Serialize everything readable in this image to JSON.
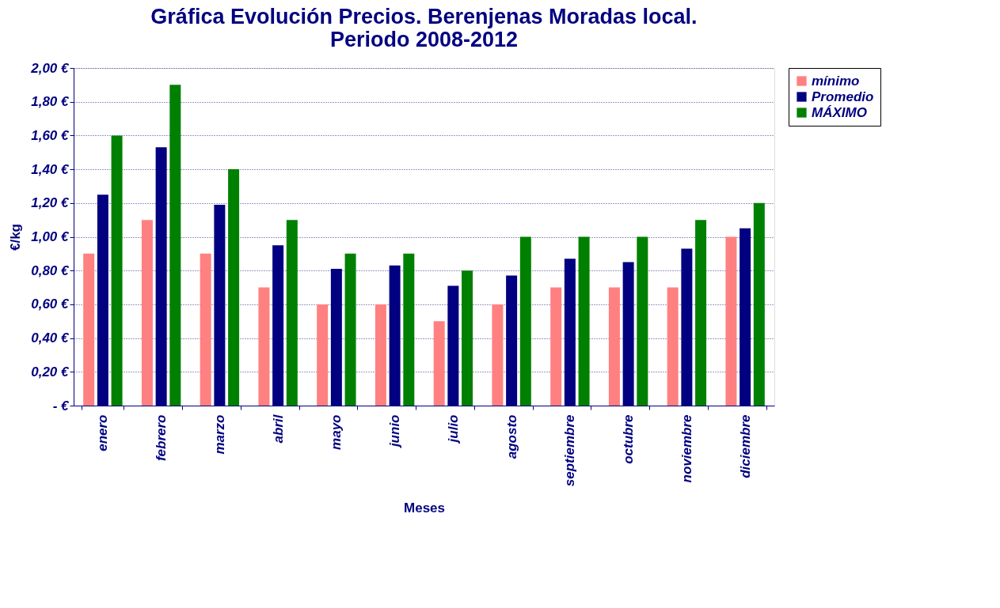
{
  "chart_data": {
    "type": "bar",
    "title": "Gráfica Evolución Precios. Berenjenas Moradas local.\nPeriodo 2008-2012",
    "xlabel": "Meses",
    "ylabel": "€/kg",
    "categories": [
      "enero",
      "febrero",
      "marzo",
      "abril",
      "mayo",
      "junio",
      "julio",
      "agosto",
      "septiembre",
      "octubre",
      "noviembre",
      "diciembre"
    ],
    "series": [
      {
        "name": "mínimo",
        "color": "#ff8080",
        "values": [
          0.9,
          1.1,
          0.9,
          0.7,
          0.6,
          0.6,
          0.5,
          0.6,
          0.7,
          0.7,
          0.7,
          1.0
        ]
      },
      {
        "name": "Promedio",
        "color": "#000080",
        "values": [
          1.25,
          1.53,
          1.19,
          0.95,
          0.81,
          0.83,
          0.71,
          0.77,
          0.87,
          0.85,
          0.93,
          1.05
        ]
      },
      {
        "name": "MÁXIMO",
        "color": "#008000",
        "values": [
          1.6,
          1.9,
          1.4,
          1.1,
          0.9,
          0.9,
          0.8,
          1.0,
          1.0,
          1.0,
          1.1,
          1.2
        ]
      }
    ],
    "ylim": [
      0,
      2
    ],
    "yticks": [
      {
        "value": 0,
        "label": "-    €"
      },
      {
        "value": 0.2,
        "label": "0,20 €"
      },
      {
        "value": 0.4,
        "label": "0,40 €"
      },
      {
        "value": 0.6,
        "label": "0,60 €"
      },
      {
        "value": 0.8,
        "label": "0,80 €"
      },
      {
        "value": 1.0,
        "label": "1,00 €"
      },
      {
        "value": 1.2,
        "label": "1,20 €"
      },
      {
        "value": 1.4,
        "label": "1,40 €"
      },
      {
        "value": 1.6,
        "label": "1,60 €"
      },
      {
        "value": 1.8,
        "label": "1,80 €"
      },
      {
        "value": 2.0,
        "label": "2,00 €"
      }
    ],
    "grid": "y",
    "legend": "right"
  }
}
